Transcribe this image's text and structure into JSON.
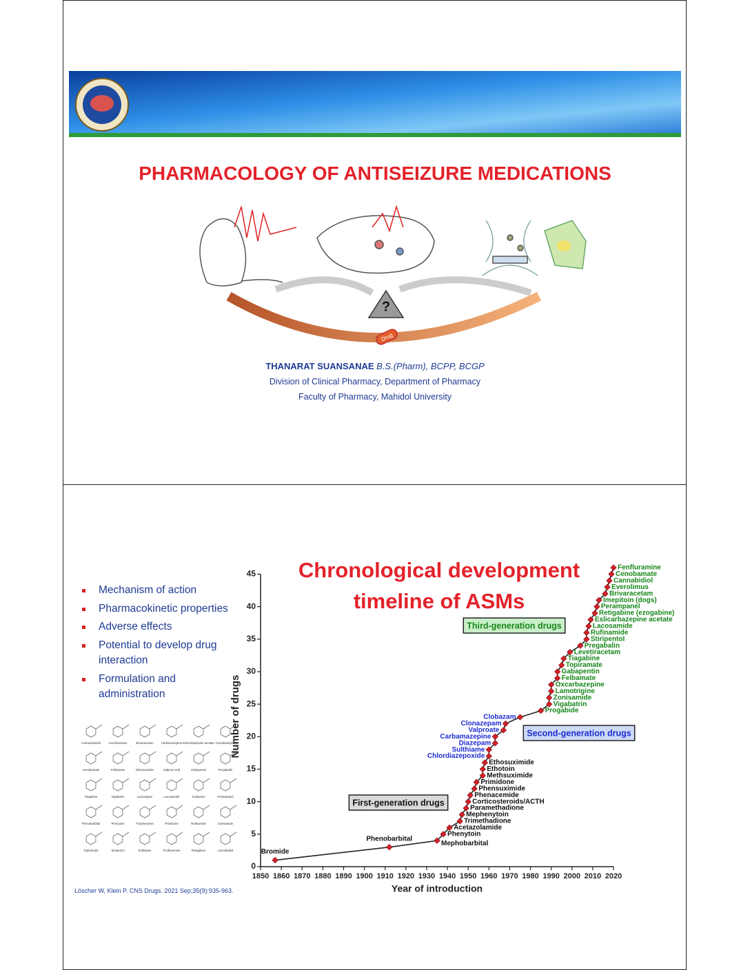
{
  "slide1": {
    "title": "PHARMACOLOGY OF ANTISEIZURE MEDICATIONS",
    "illustration": {
      "question": "?",
      "pill": "Drug"
    },
    "author": {
      "name": "THANARAT  SUANSANAE",
      "credentials": "B.S.(Pharm), BCPP, BCGP"
    },
    "affiliation": [
      "Division of Clinical Pharmacy, Department of Pharmacy",
      "Faculty of Pharmacy, Mahidol University"
    ]
  },
  "slide2": {
    "bullets": [
      "Mechanism of action",
      "Pharmacokinetic properties",
      "Adverse effects",
      "Potential to develop drug interaction",
      "Formulation and administration"
    ],
    "structures": [
      "Acetazolamide",
      "Levetiracetam",
      "Brivaracetam",
      "Carbamazepine",
      "Eslicarbazepine acetate",
      "Oxcarbazepine",
      "Cenobamate",
      "Felbamate",
      "Ethosuximide",
      "Valproic acid",
      "Gabapentin",
      "Pregabalin",
      "Tiagabine",
      "Vigabatrin",
      "Lamotrigine",
      "Lacosamide",
      "Clobazam",
      "Perampanel",
      "Phenobarbital",
      "Phenytoin",
      "Fosphenytoin",
      "Primidone",
      "Rufinamide",
      "Zonisamide",
      "Topiramate",
      "Stiripentol",
      "Sulthiame",
      "Fenfluramine",
      "Retigabine",
      "Cannabidiol"
    ],
    "citation": "Löscher W, Klein P. CNS Drugs. 2021 Sep;35(9):935-963."
  },
  "chart_data": {
    "type": "line",
    "title": [
      "Chronological development",
      "timeline of ASMs"
    ],
    "x_label": "Year of introduction",
    "y_label": "Number of drugs",
    "x": [
      1857,
      1912,
      1935,
      1938,
      1941,
      1946,
      1947,
      1949,
      1950,
      1951,
      1953,
      1954,
      1957,
      1957,
      1958,
      1960,
      1960,
      1963,
      1963,
      1967,
      1968,
      1975,
      1985,
      1989,
      1989,
      1990,
      1990,
      1993,
      1993,
      1995,
      1996,
      1999,
      2004,
      2007,
      2007,
      2008,
      2009,
      2011,
      2012,
      2013,
      2016,
      2017,
      2018,
      2019,
      2020
    ],
    "values": [
      1,
      3,
      4,
      5,
      6,
      7,
      8,
      9,
      10,
      11,
      12,
      13,
      14,
      15,
      16,
      17,
      18,
      19,
      20,
      21,
      22,
      23,
      24,
      25,
      26,
      27,
      28,
      29,
      30,
      31,
      32,
      33,
      34,
      35,
      36,
      37,
      38,
      39,
      40,
      41,
      42,
      43,
      44,
      45,
      46
    ],
    "point_labels": [
      "Bromide",
      "Phenobarbital",
      "Mephobarbital",
      "Phenytoin",
      "Acetazolamide",
      "Trimethadione",
      "Mephenytoin",
      "Paramethadione",
      "Corticosteroids/ACTH",
      "Phenacemide",
      "Phensuximide",
      "Primidone",
      "Methsuximide",
      "Ethotoin",
      "Ethosuximide",
      "Chlordiazepoxide",
      "Sulthiame",
      "Diazepam",
      "Carbamazepine",
      "Valproate",
      "Clonazepam",
      "Clobazam",
      "Progabide",
      "Vigabatrin",
      "Zonisamide",
      "Lamotrigine",
      "Oxcarbazepine",
      "Felbamate",
      "Gabapentin",
      "Topiramate",
      "Tiagabine",
      "Levetiracetam",
      "Pregabalin",
      "Stiripentol",
      "Rufinamide",
      "Lacosamide",
      "Eslicarbazepine acetate",
      "Retigabine (ezogabine)",
      "Perampanel",
      "Imepitoin (dogs)",
      "Brivaracetam",
      "Everolimus",
      "Cannabidiol",
      "Cenobamate",
      "Fenfluramine"
    ],
    "point_groups": [
      0,
      0,
      0,
      0,
      0,
      0,
      0,
      0,
      0,
      0,
      0,
      0,
      0,
      0,
      0,
      1,
      1,
      1,
      1,
      1,
      1,
      1,
      2,
      2,
      2,
      2,
      2,
      2,
      2,
      2,
      2,
      2,
      2,
      2,
      2,
      2,
      2,
      2,
      2,
      2,
      2,
      2,
      2,
      2,
      2
    ],
    "groups": [
      {
        "name": "First-generation drugs",
        "color": "#111111",
        "fill": "#d9d9d9"
      },
      {
        "name": "Second-generation drugs",
        "color": "#1c2bd0",
        "fill": "#cddaf6"
      },
      {
        "name": "Third-generation drugs",
        "color": "#17861a",
        "fill": "#c9efc9"
      }
    ],
    "line_color": "#222222",
    "marker_color": "#d4202a",
    "xlim": [
      1850,
      2020
    ],
    "xticks": [
      1850,
      1860,
      1870,
      1880,
      1890,
      1900,
      1910,
      1920,
      1930,
      1940,
      1950,
      1960,
      1970,
      1980,
      1990,
      2000,
      2010,
      2020
    ],
    "ylim": [
      0,
      46
    ],
    "yticks": [
      0,
      5,
      10,
      15,
      20,
      25,
      30,
      35,
      40,
      45
    ]
  }
}
